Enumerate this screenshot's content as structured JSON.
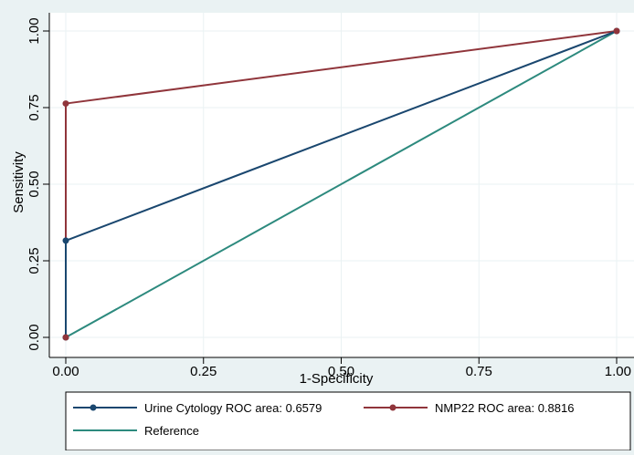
{
  "chart_data": {
    "type": "line",
    "xlabel": "1-Specificity",
    "ylabel": "Sensitivity",
    "xlim": [
      0,
      1
    ],
    "ylim": [
      0,
      1
    ],
    "xticks": [
      "0.00",
      "0.25",
      "0.50",
      "0.75",
      "1.00"
    ],
    "yticks": [
      "0.00",
      "0.25",
      "0.50",
      "0.75",
      "1.00"
    ],
    "grid": true,
    "legend_position": "bottom",
    "series": [
      {
        "name": "Urine Cytology ROC area: 0.6579",
        "color": "#1a476f",
        "markers": true,
        "x": [
          0,
          0,
          1
        ],
        "y": [
          0,
          0.3158,
          1
        ]
      },
      {
        "name": "NMP22 ROC area: 0.8816",
        "color": "#90353b",
        "markers": true,
        "x": [
          0,
          0,
          1
        ],
        "y": [
          0,
          0.7632,
          1
        ]
      },
      {
        "name": "Reference",
        "color": "#2d8a7e",
        "markers": false,
        "x": [
          0,
          1
        ],
        "y": [
          0,
          1
        ]
      }
    ]
  },
  "colors": {
    "background": "#eaf2f3",
    "plot_background": "#ffffff",
    "grid": "#eaf2f3"
  }
}
